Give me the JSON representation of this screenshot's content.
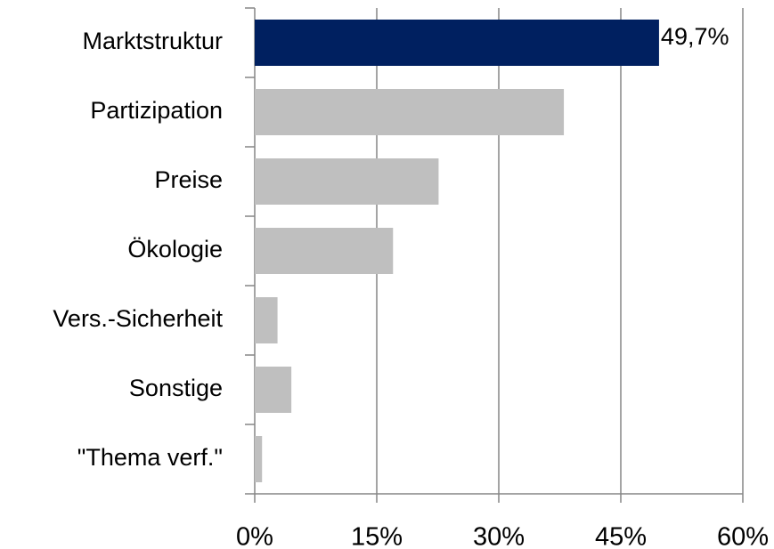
{
  "chart_data": {
    "type": "bar",
    "orientation": "horizontal",
    "categories": [
      "Marktstruktur",
      "Partizipation",
      "Preise",
      "Ökologie",
      "Vers.-Sicherheit",
      "Sonstige",
      "\"Thema verf.\""
    ],
    "values": [
      49.7,
      38.0,
      22.6,
      17.0,
      2.8,
      4.5,
      0.9
    ],
    "value_labels": [
      "49,7%",
      null,
      null,
      null,
      null,
      null,
      null
    ],
    "colors": [
      "#002060",
      "#bfbfbf",
      "#bfbfbf",
      "#bfbfbf",
      "#bfbfbf",
      "#bfbfbf",
      "#bfbfbf"
    ],
    "xlim": [
      0,
      60
    ],
    "xticks": [
      {
        "value": 0,
        "label": "0%"
      },
      {
        "value": 15,
        "label": "15%"
      },
      {
        "value": 30,
        "label": "30%"
      },
      {
        "value": 45,
        "label": "45%"
      },
      {
        "value": 60,
        "label": "60%"
      }
    ],
    "grid": true
  }
}
